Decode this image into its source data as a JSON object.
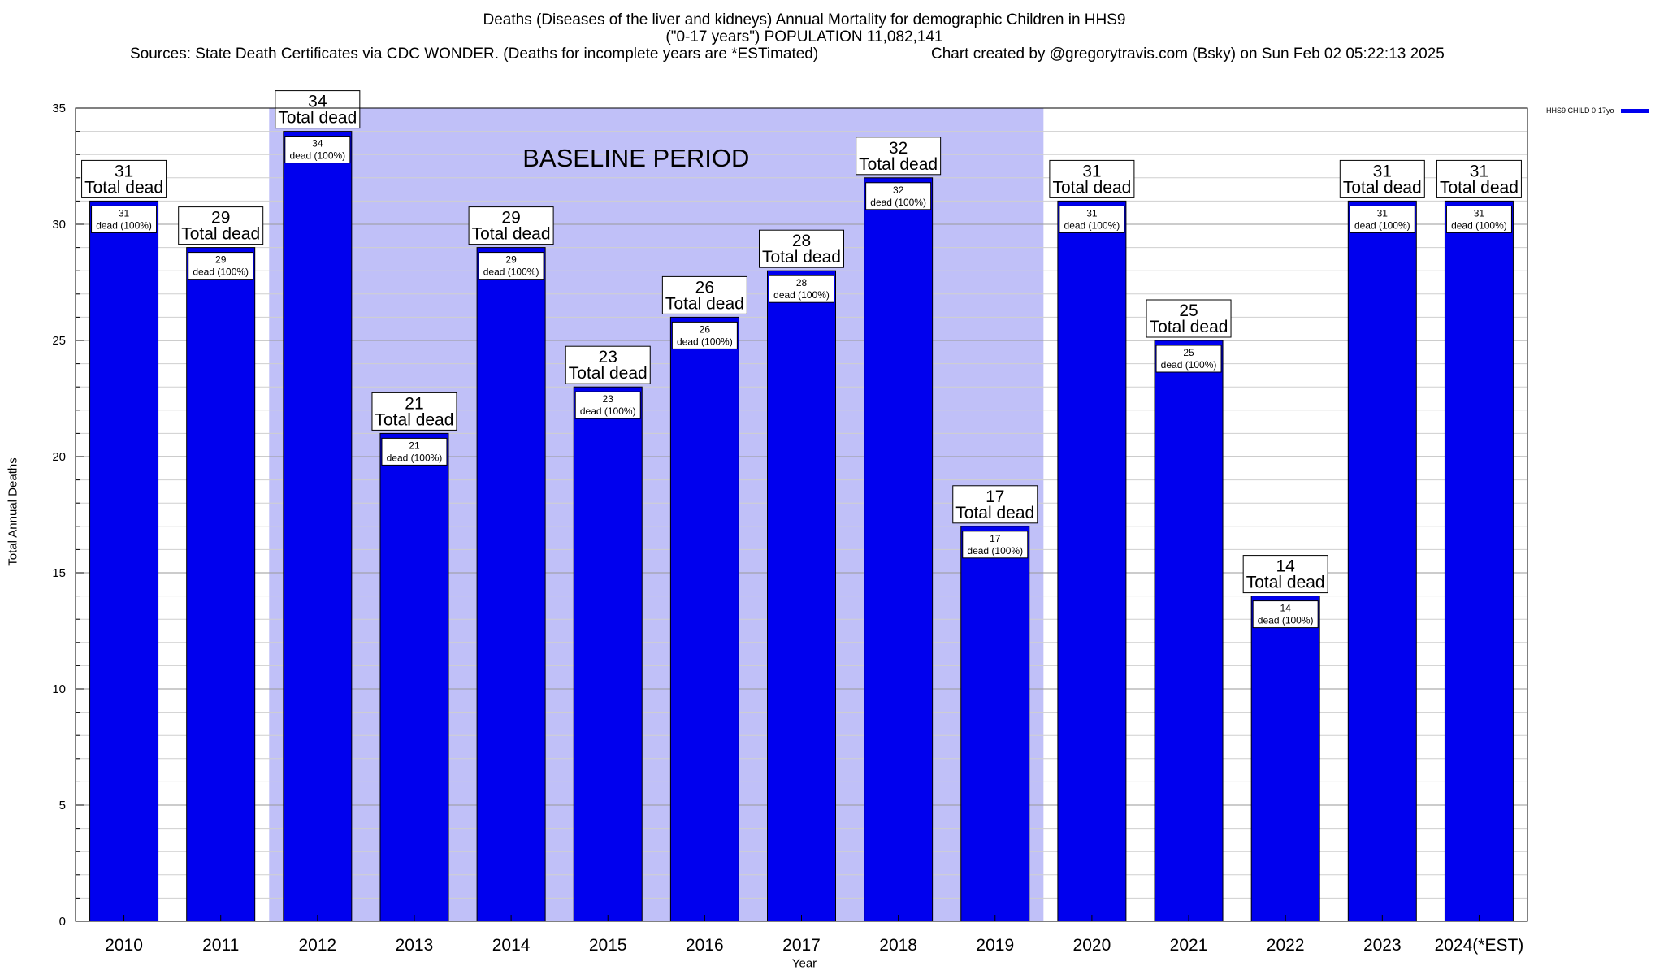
{
  "chart_data": {
    "type": "bar",
    "title": "Deaths (Diseases of the liver and kidneys) Annual Mortality for demographic Children in HHS9",
    "subtitle": "(\"0-17 years\") POPULATION 11,082,141",
    "source": "Sources: State Death Certificates via CDC WONDER. (Deaths for incomplete years are *ESTimated)",
    "credit": "Chart created by @gregorytravis.com (Bsky) on Sun Feb 02 05:22:13 2025",
    "xlabel": "Year",
    "ylabel": "Total Annual Deaths",
    "ylim": [
      0,
      35
    ],
    "yticks": [
      0,
      5,
      10,
      15,
      20,
      25,
      30,
      35
    ],
    "grid": true,
    "legend_position": "top-right",
    "bar_color": "#0000ee",
    "baseline_color": "#c0c0f8",
    "baseline": {
      "label": "BASELINE PERIOD",
      "start": "2012",
      "end": "2019"
    },
    "categories": [
      "2010",
      "2011",
      "2012",
      "2013",
      "2014",
      "2015",
      "2016",
      "2017",
      "2018",
      "2019",
      "2020",
      "2021",
      "2022",
      "2023",
      "2024(*EST)"
    ],
    "series": [
      {
        "name": "HHS9 CHILD 0-17yo",
        "values": [
          31,
          29,
          34,
          21,
          29,
          23,
          26,
          28,
          32,
          17,
          31,
          25,
          14,
          31,
          31
        ]
      }
    ],
    "outer_label_suffix": "Total dead",
    "inner_label_suffix": "dead (100%)"
  }
}
